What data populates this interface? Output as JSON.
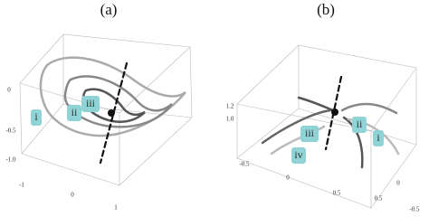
{
  "panels": [
    {
      "label": "(a)",
      "tags": [
        "i",
        "ii",
        "iii"
      ],
      "ticks": [
        "0",
        "-0.5",
        "-1.0",
        "-1",
        "0",
        "1"
      ]
    },
    {
      "label": "(b)",
      "tags": [
        "iii",
        "ii",
        "i",
        "iv"
      ],
      "ticks": [
        "1.2",
        "1.0",
        "-0.5",
        "0",
        "0.5",
        "0.5",
        "0",
        "-0.5"
      ]
    }
  ]
}
